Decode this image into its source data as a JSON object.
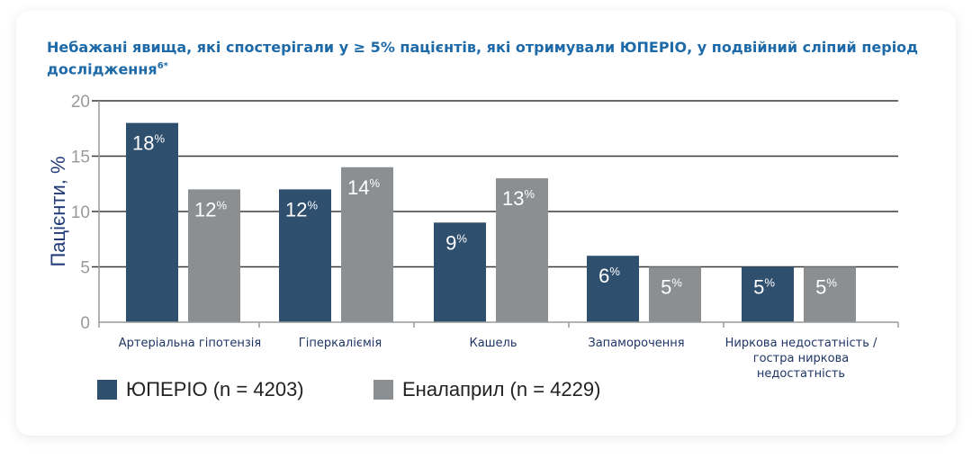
{
  "title": "Небажані явища, які спостерігали у ≥ 5% пацієнтів, які отримували ЮПЕРІО, у подвійний сліпий період дослідження",
  "title_superscript": "6*",
  "chart_data": {
    "type": "bar",
    "ylabel": "Пацієнти, %",
    "ylim": [
      0,
      20
    ],
    "yticks": [
      0,
      5,
      10,
      15,
      20
    ],
    "grid": true,
    "legend_position": "bottom-left",
    "categories": [
      "Артеріальна гіпотензія",
      "Гіперкаліємія",
      "Кашель",
      "Запаморочення",
      "Ниркова недостатність / гостра ниркова недостатність"
    ],
    "series": [
      {
        "name": "ЮПЕРІО (n = 4203)",
        "color": "#2f4f6e",
        "values": [
          18,
          12,
          9,
          6,
          5
        ]
      },
      {
        "name": "Еналаприл (n = 4229)",
        "color": "#8b8f91",
        "values": [
          12,
          14,
          13,
          5,
          5
        ]
      }
    ],
    "value_label_suffix": "%"
  }
}
